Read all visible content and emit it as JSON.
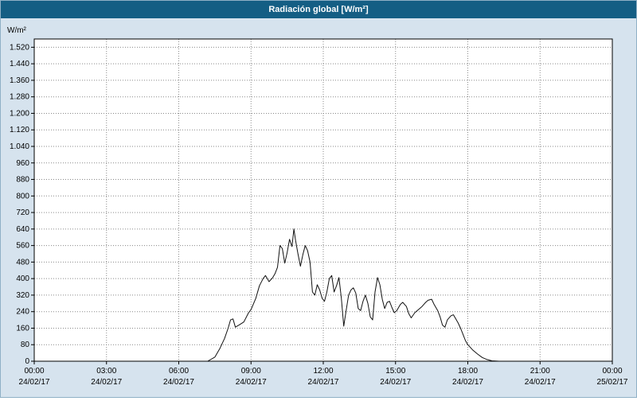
{
  "window": {
    "title": "Radiación global [W/m²]"
  },
  "colors": {
    "titlebar_bg": "#145e84",
    "titlebar_text": "#ffffff",
    "window_border": "#8fb0c6",
    "panel_bg": "#d6e3ee",
    "plot_bg": "#ffffff",
    "plot_border": "#000000",
    "grid": "#8a8a8a",
    "line": "#111111",
    "text": "#000000"
  },
  "chart_data": {
    "type": "line",
    "title": "Radiación global [W/m²]",
    "ylabel": "W/m²",
    "xlabel": "",
    "xlim": [
      0,
      24
    ],
    "ylim": [
      0,
      1560
    ],
    "grid": "dotted",
    "legend": "none",
    "y_ticks": [
      {
        "value": 0,
        "label": "0"
      },
      {
        "value": 80,
        "label": "80"
      },
      {
        "value": 160,
        "label": "160"
      },
      {
        "value": 240,
        "label": "240"
      },
      {
        "value": 320,
        "label": "320"
      },
      {
        "value": 400,
        "label": "400"
      },
      {
        "value": 480,
        "label": "480"
      },
      {
        "value": 560,
        "label": "560"
      },
      {
        "value": 640,
        "label": "640"
      },
      {
        "value": 720,
        "label": "720"
      },
      {
        "value": 800,
        "label": "800"
      },
      {
        "value": 880,
        "label": "880"
      },
      {
        "value": 960,
        "label": "960"
      },
      {
        "value": 1040,
        "label": "1.040"
      },
      {
        "value": 1120,
        "label": "1.120"
      },
      {
        "value": 1200,
        "label": "1.200"
      },
      {
        "value": 1280,
        "label": "1.280"
      },
      {
        "value": 1360,
        "label": "1.360"
      },
      {
        "value": 1440,
        "label": "1.440"
      },
      {
        "value": 1520,
        "label": "1.520"
      }
    ],
    "x_ticks": [
      {
        "hour": 0,
        "time": "00:00",
        "date": "24/02/17"
      },
      {
        "hour": 3,
        "time": "03:00",
        "date": "24/02/17"
      },
      {
        "hour": 6,
        "time": "06:00",
        "date": "24/02/17"
      },
      {
        "hour": 9,
        "time": "09:00",
        "date": "24/02/17"
      },
      {
        "hour": 12,
        "time": "12:00",
        "date": "24/02/17"
      },
      {
        "hour": 15,
        "time": "15:00",
        "date": "24/02/17"
      },
      {
        "hour": 18,
        "time": "18:00",
        "date": "24/02/17"
      },
      {
        "hour": 21,
        "time": "21:00",
        "date": "24/02/17"
      },
      {
        "hour": 24,
        "time": "00:00",
        "date": "25/02/17"
      }
    ],
    "series": [
      {
        "name": "Radiación global",
        "points": [
          [
            0,
            0
          ],
          [
            7.2,
            0
          ],
          [
            7.5,
            20
          ],
          [
            7.7,
            60
          ],
          [
            7.9,
            110
          ],
          [
            8.05,
            160
          ],
          [
            8.15,
            200
          ],
          [
            8.25,
            205
          ],
          [
            8.35,
            165
          ],
          [
            8.5,
            175
          ],
          [
            8.7,
            190
          ],
          [
            8.9,
            235
          ],
          [
            9.0,
            250
          ],
          [
            9.2,
            305
          ],
          [
            9.35,
            365
          ],
          [
            9.5,
            400
          ],
          [
            9.6,
            415
          ],
          [
            9.75,
            385
          ],
          [
            9.9,
            405
          ],
          [
            10.0,
            425
          ],
          [
            10.1,
            455
          ],
          [
            10.2,
            560
          ],
          [
            10.3,
            545
          ],
          [
            10.4,
            475
          ],
          [
            10.5,
            525
          ],
          [
            10.6,
            590
          ],
          [
            10.7,
            555
          ],
          [
            10.78,
            640
          ],
          [
            10.85,
            585
          ],
          [
            10.95,
            520
          ],
          [
            11.05,
            460
          ],
          [
            11.15,
            515
          ],
          [
            11.25,
            560
          ],
          [
            11.35,
            535
          ],
          [
            11.45,
            480
          ],
          [
            11.55,
            335
          ],
          [
            11.65,
            320
          ],
          [
            11.75,
            370
          ],
          [
            11.85,
            345
          ],
          [
            11.95,
            305
          ],
          [
            12.05,
            290
          ],
          [
            12.15,
            335
          ],
          [
            12.25,
            400
          ],
          [
            12.35,
            415
          ],
          [
            12.45,
            335
          ],
          [
            12.55,
            365
          ],
          [
            12.65,
            405
          ],
          [
            12.75,
            305
          ],
          [
            12.85,
            170
          ],
          [
            12.95,
            245
          ],
          [
            13.05,
            320
          ],
          [
            13.15,
            345
          ],
          [
            13.25,
            355
          ],
          [
            13.35,
            330
          ],
          [
            13.45,
            255
          ],
          [
            13.55,
            245
          ],
          [
            13.65,
            290
          ],
          [
            13.75,
            320
          ],
          [
            13.85,
            280
          ],
          [
            13.95,
            215
          ],
          [
            14.05,
            200
          ],
          [
            14.15,
            335
          ],
          [
            14.25,
            405
          ],
          [
            14.35,
            370
          ],
          [
            14.45,
            300
          ],
          [
            14.55,
            255
          ],
          [
            14.65,
            285
          ],
          [
            14.75,
            290
          ],
          [
            14.85,
            260
          ],
          [
            14.95,
            235
          ],
          [
            15.05,
            245
          ],
          [
            15.2,
            275
          ],
          [
            15.3,
            285
          ],
          [
            15.45,
            265
          ],
          [
            15.55,
            230
          ],
          [
            15.65,
            210
          ],
          [
            15.8,
            235
          ],
          [
            15.95,
            250
          ],
          [
            16.1,
            265
          ],
          [
            16.25,
            285
          ],
          [
            16.35,
            295
          ],
          [
            16.5,
            300
          ],
          [
            16.6,
            275
          ],
          [
            16.75,
            245
          ],
          [
            16.85,
            215
          ],
          [
            16.95,
            175
          ],
          [
            17.05,
            165
          ],
          [
            17.15,
            200
          ],
          [
            17.3,
            220
          ],
          [
            17.4,
            225
          ],
          [
            17.5,
            205
          ],
          [
            17.6,
            185
          ],
          [
            17.7,
            160
          ],
          [
            17.8,
            130
          ],
          [
            17.9,
            100
          ],
          [
            18.0,
            80
          ],
          [
            18.2,
            55
          ],
          [
            18.4,
            35
          ],
          [
            18.6,
            18
          ],
          [
            18.8,
            8
          ],
          [
            19.0,
            2
          ],
          [
            19.3,
            0
          ],
          [
            24,
            0
          ]
        ]
      }
    ]
  }
}
